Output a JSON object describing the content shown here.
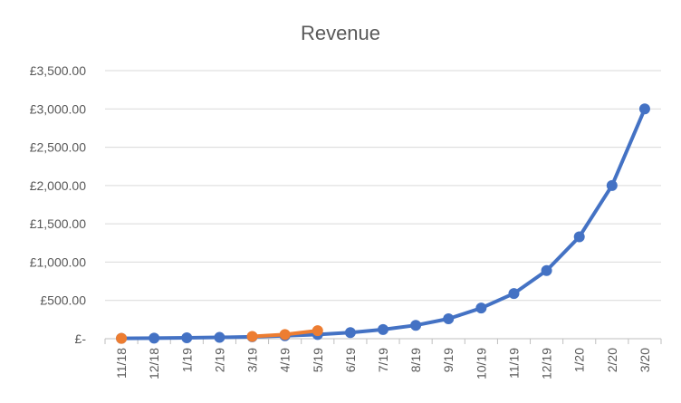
{
  "chart_data": {
    "type": "line",
    "title": "Revenue",
    "xlabel": "",
    "ylabel": "",
    "categories": [
      "11/18",
      "12/18",
      "1/19",
      "2/19",
      "3/19",
      "4/19",
      "5/19",
      "6/19",
      "7/19",
      "8/19",
      "9/19",
      "10/19",
      "11/19",
      "12/19",
      "1/20",
      "2/20",
      "3/20"
    ],
    "ylim": [
      0,
      3500
    ],
    "yticks": [
      {
        "value": 0,
        "label": "£-"
      },
      {
        "value": 500,
        "label": "£500.00"
      },
      {
        "value": 1000,
        "label": "£1,000.00"
      },
      {
        "value": 1500,
        "label": "£1,500.00"
      },
      {
        "value": 2000,
        "label": "£2,000.00"
      },
      {
        "value": 2500,
        "label": "£2,500.00"
      },
      {
        "value": 3000,
        "label": "£3,000.00"
      },
      {
        "value": 3500,
        "label": "£3,500.00"
      }
    ],
    "grid": true,
    "legend": "none",
    "series": [
      {
        "color": "#4472C4",
        "values": [
          5,
          8,
          12,
          17,
          25,
          38,
          55,
          80,
          120,
          175,
          260,
          400,
          590,
          890,
          1330,
          2000,
          3000
        ]
      },
      {
        "color": "#ED7D31",
        "values": [
          5,
          null,
          null,
          null,
          30,
          55,
          105,
          null,
          null,
          null,
          null,
          null,
          null,
          null,
          null,
          null,
          null
        ]
      }
    ]
  }
}
